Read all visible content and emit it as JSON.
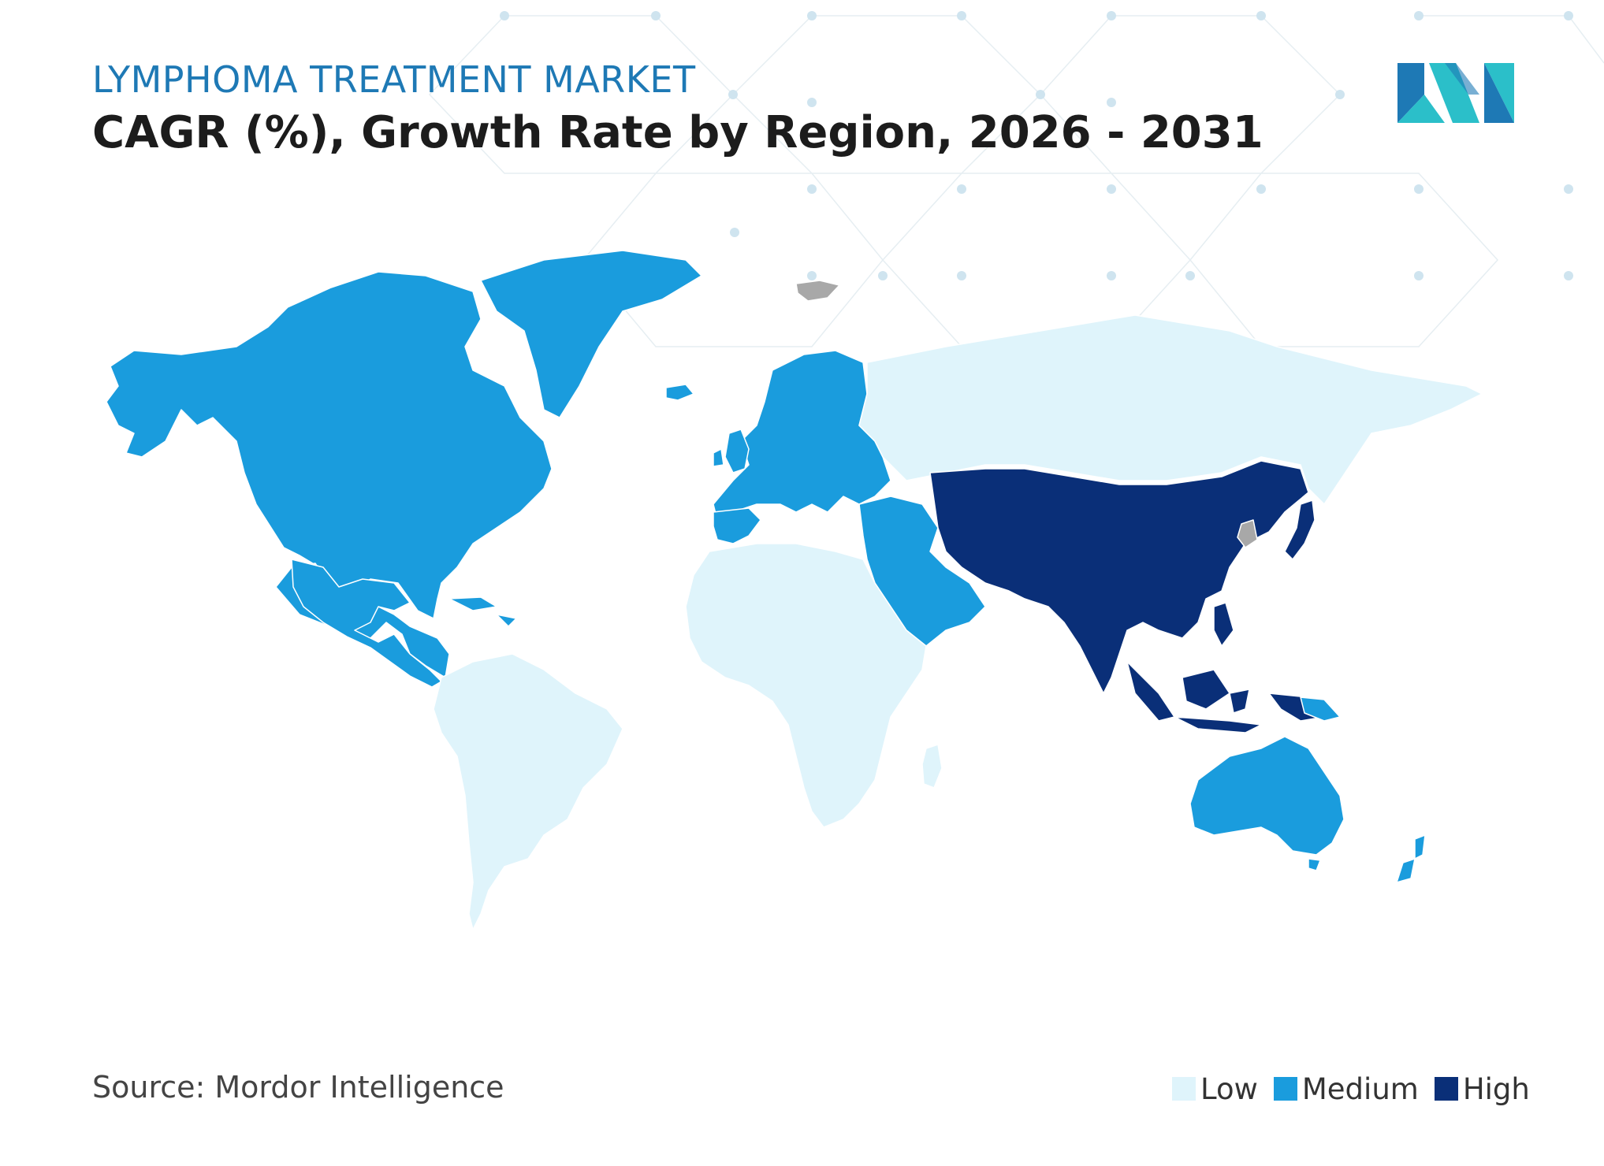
{
  "header": {
    "eyebrow": "LYMPHOMA TREATMENT MARKET",
    "title": "CAGR (%), Growth Rate by Region, 2026 - 2031"
  },
  "footer": {
    "source": "Source: Mordor Intelligence"
  },
  "legend": [
    {
      "label": "Low",
      "color": "#dff4fb"
    },
    {
      "label": "Medium",
      "color": "#1a9cdd"
    },
    {
      "label": "High",
      "color": "#0a2f78"
    }
  ],
  "map": {
    "no_data_color": "#a8a8a8",
    "regions": [
      {
        "region": "North America",
        "level": "Medium"
      },
      {
        "region": "Europe",
        "level": "Medium"
      },
      {
        "region": "Middle East",
        "level": "Medium"
      },
      {
        "region": "Australia and New Zealand",
        "level": "Medium"
      },
      {
        "region": "South America",
        "level": "Low"
      },
      {
        "region": "Africa",
        "level": "Low"
      },
      {
        "region": "Russia",
        "level": "Low"
      },
      {
        "region": "Asia",
        "level": "High"
      }
    ]
  },
  "logo": {
    "icon": "mordor-intelligence-logo",
    "colors": [
      "#1e79b5",
      "#2bbfc9"
    ]
  }
}
